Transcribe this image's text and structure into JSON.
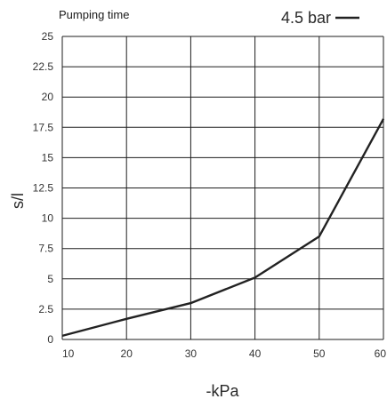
{
  "chart_data": {
    "type": "line",
    "title": "Pumping time",
    "xlabel": "-kPa",
    "ylabel": "s/l",
    "x": [
      10,
      20,
      30,
      40,
      50,
      60
    ],
    "xlim": [
      10,
      60
    ],
    "ylim": [
      0,
      25
    ],
    "x_ticks": [
      "10",
      "20",
      "30",
      "40",
      "50",
      "60"
    ],
    "y_ticks": [
      "0",
      "2.5",
      "5",
      "7.5",
      "10",
      "12.5",
      "15",
      "17.5",
      "20",
      "22.5",
      "25"
    ],
    "grid": true,
    "legend_position": "top-right",
    "series": [
      {
        "name": "4.5 bar",
        "color": "#222222",
        "points": [
          [
            10,
            0.3
          ],
          [
            20,
            1.7
          ],
          [
            30,
            3.0
          ],
          [
            40,
            5.1
          ],
          [
            50,
            8.5
          ],
          [
            60,
            18.2
          ]
        ]
      }
    ]
  }
}
